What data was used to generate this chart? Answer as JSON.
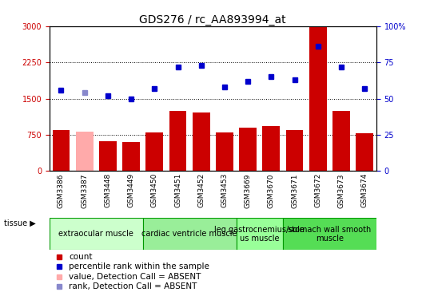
{
  "title": "GDS276 / rc_AA893994_at",
  "samples": [
    "GSM3386",
    "GSM3387",
    "GSM3448",
    "GSM3449",
    "GSM3450",
    "GSM3451",
    "GSM3452",
    "GSM3453",
    "GSM3669",
    "GSM3670",
    "GSM3671",
    "GSM3672",
    "GSM3673",
    "GSM3674"
  ],
  "bar_values": [
    850,
    820,
    620,
    600,
    790,
    1250,
    1210,
    790,
    900,
    930,
    845,
    2980,
    1250,
    780
  ],
  "bar_colors": [
    "#cc0000",
    "#ffaaaa",
    "#cc0000",
    "#cc0000",
    "#cc0000",
    "#cc0000",
    "#cc0000",
    "#cc0000",
    "#cc0000",
    "#cc0000",
    "#cc0000",
    "#cc0000",
    "#cc0000",
    "#cc0000"
  ],
  "rank_values": [
    56,
    54,
    52,
    50,
    57,
    72,
    73,
    58,
    62,
    65,
    63,
    86,
    72,
    57
  ],
  "rank_colors": [
    "#0000cc",
    "#8888cc",
    "#0000cc",
    "#0000cc",
    "#0000cc",
    "#0000cc",
    "#0000cc",
    "#0000cc",
    "#0000cc",
    "#0000cc",
    "#0000cc",
    "#0000cc",
    "#0000cc",
    "#0000cc"
  ],
  "ylim_left": [
    0,
    3000
  ],
  "ylim_right": [
    0,
    100
  ],
  "yticks_left": [
    0,
    750,
    1500,
    2250,
    3000
  ],
  "yticks_right": [
    0,
    25,
    50,
    75,
    100
  ],
  "left_tick_labels": [
    "0",
    "750",
    "1500",
    "2250",
    "3000"
  ],
  "right_tick_labels": [
    "0",
    "25",
    "50",
    "75",
    "100%"
  ],
  "tissue_groups": [
    {
      "label": "extraocular muscle",
      "start": 0,
      "end": 3,
      "color": "#ccffcc"
    },
    {
      "label": "cardiac ventricle muscle",
      "start": 4,
      "end": 7,
      "color": "#99ee99"
    },
    {
      "label": "leg gastrocnemius/soleus muscle",
      "start": 8,
      "end": 9,
      "color": "#99ff99"
    },
    {
      "label": "stomach wall smooth muscle",
      "start": 10,
      "end": 13,
      "color": "#55dd55"
    }
  ],
  "legend_items": [
    {
      "color": "#cc0000",
      "label": "count"
    },
    {
      "color": "#0000cc",
      "label": "percentile rank within the sample"
    },
    {
      "color": "#ffaaaa",
      "label": "value, Detection Call = ABSENT"
    },
    {
      "color": "#8888cc",
      "label": "rank, Detection Call = ABSENT"
    }
  ],
  "bg_color": "#ffffff",
  "plot_bg_color": "#ffffff",
  "xtick_bg_color": "#cccccc",
  "tissue_border_color": "#009900",
  "title_fontsize": 10,
  "tick_fontsize": 7,
  "sample_fontsize": 6.5,
  "tissue_fontsize": 7,
  "legend_fontsize": 7.5
}
